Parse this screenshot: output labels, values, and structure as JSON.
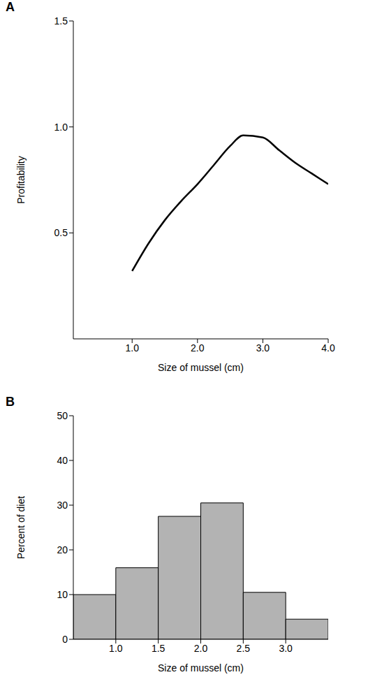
{
  "chart_data": [
    {
      "type": "line",
      "title": "A",
      "x_label": "Size of mussel (cm)",
      "y_label": "Profitability",
      "x": [
        1.0,
        1.25,
        1.5,
        1.75,
        2.0,
        2.25,
        2.5,
        2.7,
        3.0,
        3.25,
        3.5,
        3.75,
        4.0
      ],
      "values": [
        0.32,
        0.45,
        0.56,
        0.65,
        0.73,
        0.82,
        0.91,
        0.96,
        0.95,
        0.89,
        0.83,
        0.78,
        0.73
      ],
      "color": "#000000",
      "xlim": [
        0.1,
        4.0
      ],
      "xticks": [
        {
          "value": 1,
          "label": "1.0"
        },
        {
          "value": 2,
          "label": "2.0"
        },
        {
          "value": 3,
          "label": "3.0"
        },
        {
          "value": 4,
          "label": "4.0"
        }
      ],
      "ylim": [
        0,
        1.5
      ],
      "yticks": [
        0.5,
        {
          "value": 1,
          "label": "1.0"
        },
        1.5
      ],
      "grid": false
    },
    {
      "type": "histogram",
      "title": "B",
      "x_label": "Size of mussel (cm)",
      "y_label": "Percent of diet",
      "bins": [
        0.5,
        1.0,
        1.5,
        2.0,
        2.5,
        3.0,
        3.5
      ],
      "values": [
        10,
        16,
        27.5,
        30.5,
        10.5,
        4.5
      ],
      "color": "#b3b3b3",
      "xlim": [
        0.5,
        3.5
      ],
      "xticks": [
        {
          "value": 1,
          "label": "1.0"
        },
        {
          "value": 1.5,
          "label": "1.5"
        },
        {
          "value": 2,
          "label": "2.0"
        },
        {
          "value": 2.5,
          "label": "2.5"
        },
        {
          "value": 3,
          "label": "3.0"
        }
      ],
      "ylim": [
        0,
        50
      ],
      "yticks": [
        0,
        10,
        20,
        30,
        40,
        50
      ],
      "grid": false
    }
  ]
}
